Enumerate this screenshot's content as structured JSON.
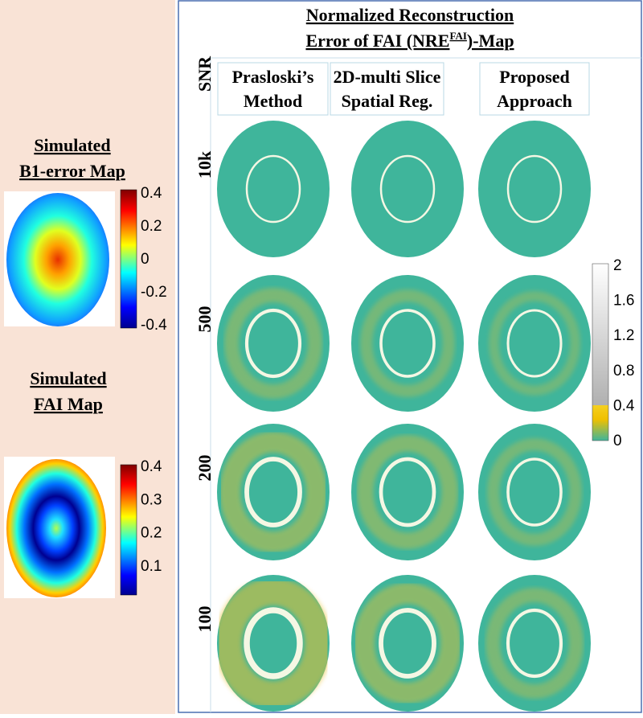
{
  "left": {
    "b1": {
      "title_line1": "Simulated",
      "title_line2": "B1-error Map",
      "colorbar_ticks": [
        0.4,
        0.2,
        0,
        -0.2,
        -0.4
      ]
    },
    "fai": {
      "title_line1": "Simulated",
      "title_line2": "FAI Map",
      "colorbar_ticks": [
        0.4,
        0.3,
        0.2,
        0.1
      ]
    }
  },
  "right": {
    "title_line1": "Normalized Reconstruction",
    "title_line2_pre": "Error of FAI (NRE",
    "title_sup": "FAI",
    "title_line2_post": ")-Map",
    "row_header": "SNR",
    "columns": [
      [
        "Prasloski’s",
        "Method"
      ],
      [
        "2D-multi Slice",
        "Spatial Reg."
      ],
      [
        "Proposed",
        "Approach"
      ]
    ],
    "rows": [
      "10k",
      "500",
      "200",
      "100"
    ],
    "colorbar_ticks": [
      2,
      1.6,
      1.2,
      0.8,
      0.4,
      0
    ]
  }
}
